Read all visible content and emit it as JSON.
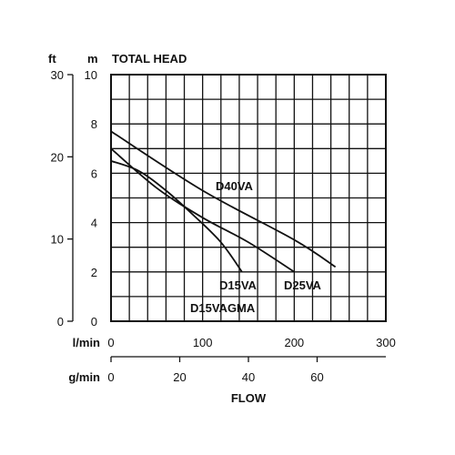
{
  "chart_data": {
    "type": "line",
    "title": "TOTAL HEAD",
    "xlabel": "FLOW",
    "x_units": "l/min",
    "x2_units": "g/min",
    "y_units": "m",
    "y2_units": "ft",
    "xlim": [
      0,
      300
    ],
    "ylim": [
      0,
      10
    ],
    "x2lim": [
      0,
      80
    ],
    "y2lim": [
      0,
      30
    ],
    "x_ticks": [
      0,
      100,
      200,
      300
    ],
    "x2_ticks": [
      0,
      20,
      40,
      60
    ],
    "y_ticks": [
      0,
      2,
      4,
      6,
      8,
      10
    ],
    "y2_ticks": [
      0,
      10,
      20,
      30
    ],
    "grid": true,
    "series": [
      {
        "name": "D40VA",
        "x": [
          0,
          100,
          200,
          245
        ],
        "y": [
          7.7,
          5.3,
          3.3,
          2.2
        ]
      },
      {
        "name": "D25VA",
        "x": [
          0,
          50,
          100,
          150,
          200
        ],
        "y": [
          7.0,
          5.4,
          4.2,
          3.2,
          2.0
        ]
      },
      {
        "name": "D15VA",
        "x": [
          0,
          30,
          60,
          90,
          120,
          143
        ],
        "y": [
          6.5,
          6.1,
          5.3,
          4.3,
          3.2,
          2.0
        ]
      },
      {
        "name": "D15VAGMA",
        "x": [],
        "y": []
      }
    ],
    "series_labels": [
      "D40VA",
      "D25VA",
      "D15VA",
      "D15VAGMA"
    ]
  }
}
